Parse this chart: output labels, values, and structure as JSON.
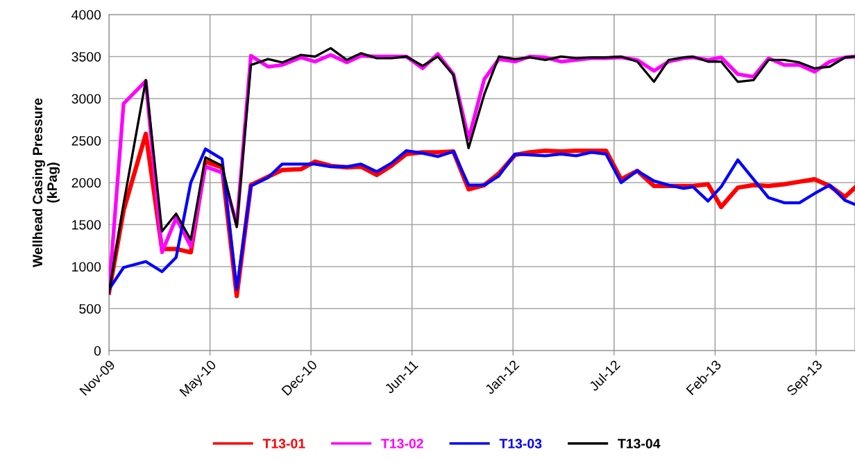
{
  "chart_data": {
    "type": "line",
    "ylabel": "Wellhead Casing Pressure\n(kPag)",
    "x": [
      "2009-11-01",
      "2009-11-30",
      "2010-01-13",
      "2010-02-14",
      "2010-03-14",
      "2010-04-12",
      "2010-05-11",
      "2010-06-13",
      "2010-07-12",
      "2010-08-09",
      "2010-09-12",
      "2010-10-10",
      "2010-11-16",
      "2010-12-14",
      "2011-01-14",
      "2011-02-15",
      "2011-03-15",
      "2011-04-15",
      "2011-05-14",
      "2011-06-13",
      "2011-07-15",
      "2011-08-14",
      "2011-09-14",
      "2011-10-14",
      "2011-11-14",
      "2011-12-13",
      "2012-01-14",
      "2012-02-12",
      "2012-03-14",
      "2012-04-14",
      "2012-05-14",
      "2012-06-13",
      "2012-07-12",
      "2012-08-11",
      "2012-09-12",
      "2012-10-15",
      "2012-11-13",
      "2012-12-13",
      "2012-12-31",
      "2013-01-30",
      "2013-02-25",
      "2013-03-30",
      "2013-04-30",
      "2013-05-30",
      "2013-06-30",
      "2013-07-30",
      "2013-08-29",
      "2013-09-28",
      "2013-10-28",
      "2013-11-17"
    ],
    "series": [
      {
        "name": "T13-01",
        "color": "#ff0000",
        "values": [
          690,
          1670,
          2580,
          1210,
          1210,
          1170,
          2250,
          2180,
          650,
          1970,
          2070,
          2150,
          2160,
          2250,
          2200,
          2180,
          2190,
          2090,
          2200,
          2340,
          2360,
          2360,
          2370,
          1920,
          1970,
          2110,
          2330,
          2360,
          2380,
          2370,
          2380,
          2380,
          2380,
          2040,
          2140,
          1960,
          1960,
          1960,
          1960,
          1980,
          1710,
          1940,
          1970,
          1960,
          1980,
          2010,
          2040,
          1960,
          1830,
          1940
        ]
      },
      {
        "name": "T13-02",
        "color": "#ff00ff",
        "values": [
          700,
          2940,
          3210,
          1170,
          1580,
          1240,
          2190,
          2120,
          1500,
          3510,
          3380,
          3400,
          3490,
          3440,
          3520,
          3430,
          3510,
          3500,
          3500,
          3500,
          3360,
          3530,
          3290,
          2520,
          3230,
          3470,
          3440,
          3500,
          3490,
          3440,
          3460,
          3480,
          3480,
          3490,
          3460,
          3330,
          3440,
          3480,
          3490,
          3460,
          3490,
          3290,
          3260,
          3480,
          3400,
          3400,
          3320,
          3440,
          3490,
          3500
        ]
      },
      {
        "name": "T13-03",
        "color": "#0000ff",
        "values": [
          730,
          990,
          1060,
          940,
          1110,
          2000,
          2400,
          2280,
          730,
          1960,
          2060,
          2220,
          2220,
          2220,
          2190,
          2190,
          2220,
          2130,
          2230,
          2380,
          2350,
          2310,
          2370,
          1970,
          1970,
          2080,
          2340,
          2330,
          2320,
          2340,
          2320,
          2360,
          2340,
          2000,
          2140,
          2020,
          1970,
          1930,
          1950,
          1780,
          1950,
          2270,
          2040,
          1820,
          1760,
          1760,
          1870,
          1970,
          1790,
          1740
        ]
      },
      {
        "name": "T13-04",
        "color": "#000000",
        "values": [
          690,
          1750,
          3220,
          1420,
          1630,
          1320,
          2300,
          2200,
          1470,
          3400,
          3470,
          3430,
          3520,
          3500,
          3600,
          3460,
          3540,
          3480,
          3480,
          3500,
          3390,
          3500,
          3280,
          2410,
          3050,
          3500,
          3470,
          3490,
          3460,
          3500,
          3480,
          3490,
          3490,
          3500,
          3440,
          3200,
          3460,
          3490,
          3500,
          3440,
          3440,
          3200,
          3220,
          3460,
          3460,
          3430,
          3360,
          3380,
          3490,
          3500
        ]
      }
    ],
    "xlim": [
      "2009-11-01",
      "2013-11-17"
    ],
    "xticks": [
      {
        "value": "2009-11-01",
        "label": "Nov-09"
      },
      {
        "value": "2010-05-20",
        "label": "May-10"
      },
      {
        "value": "2010-12-06",
        "label": "Dec-10"
      },
      {
        "value": "2011-06-24",
        "label": "Jun-11"
      },
      {
        "value": "2012-01-10",
        "label": "Jan-12"
      },
      {
        "value": "2012-07-28",
        "label": "Jul-12"
      },
      {
        "value": "2013-02-13",
        "label": "Feb-13"
      },
      {
        "value": "2013-09-01",
        "label": "Sep-13"
      }
    ],
    "ylim": [
      0,
      4000
    ],
    "yticks": [
      0,
      500,
      1000,
      1500,
      2000,
      2500,
      3000,
      3500,
      4000
    ],
    "grid": true,
    "legend": "bottom",
    "marker": "none",
    "line_style": "solid"
  }
}
